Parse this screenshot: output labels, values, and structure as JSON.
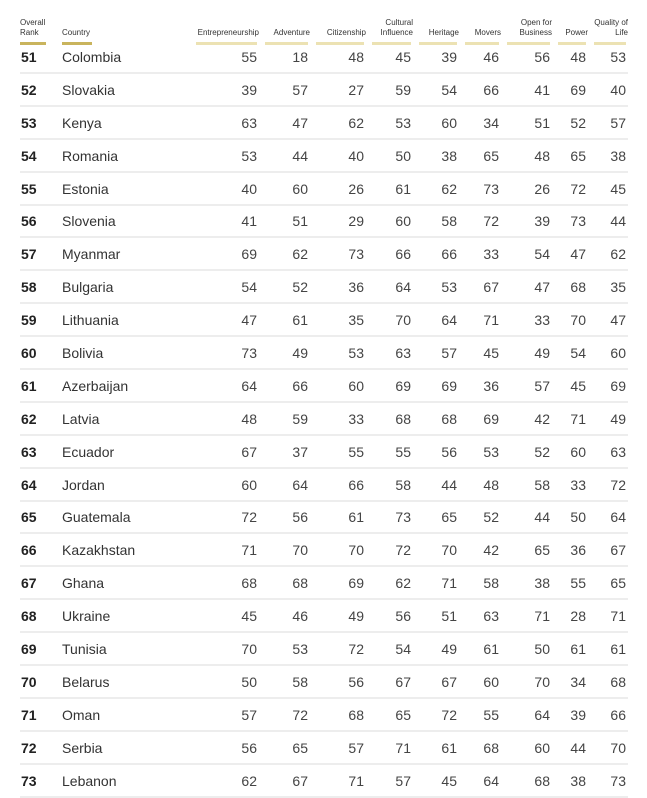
{
  "chart_data": {
    "type": "table",
    "columns": [
      "Overall Rank",
      "Country",
      "Entrepreneurship",
      "Adventure",
      "Citizenship",
      "Cultural Influence",
      "Heritage",
      "Movers",
      "Open for Business",
      "Power",
      "Quality of Life"
    ],
    "rows": [
      [
        "51",
        "Colombia",
        "55",
        "18",
        "48",
        "45",
        "39",
        "46",
        "56",
        "48",
        "53"
      ],
      [
        "52",
        "Slovakia",
        "39",
        "57",
        "27",
        "59",
        "54",
        "66",
        "41",
        "69",
        "40"
      ],
      [
        "53",
        "Kenya",
        "63",
        "47",
        "62",
        "53",
        "60",
        "34",
        "51",
        "52",
        "57"
      ],
      [
        "54",
        "Romania",
        "53",
        "44",
        "40",
        "50",
        "38",
        "65",
        "48",
        "65",
        "38"
      ],
      [
        "55",
        "Estonia",
        "40",
        "60",
        "26",
        "61",
        "62",
        "73",
        "26",
        "72",
        "45"
      ],
      [
        "56",
        "Slovenia",
        "41",
        "51",
        "29",
        "60",
        "58",
        "72",
        "39",
        "73",
        "44"
      ],
      [
        "57",
        "Myanmar",
        "69",
        "62",
        "73",
        "66",
        "66",
        "33",
        "54",
        "47",
        "62"
      ],
      [
        "58",
        "Bulgaria",
        "54",
        "52",
        "36",
        "64",
        "53",
        "67",
        "47",
        "68",
        "35"
      ],
      [
        "59",
        "Lithuania",
        "47",
        "61",
        "35",
        "70",
        "64",
        "71",
        "33",
        "70",
        "47"
      ],
      [
        "60",
        "Bolivia",
        "73",
        "49",
        "53",
        "63",
        "57",
        "45",
        "49",
        "54",
        "60"
      ],
      [
        "61",
        "Azerbaijan",
        "64",
        "66",
        "60",
        "69",
        "69",
        "36",
        "57",
        "45",
        "69"
      ],
      [
        "62",
        "Latvia",
        "48",
        "59",
        "33",
        "68",
        "68",
        "69",
        "42",
        "71",
        "49"
      ],
      [
        "63",
        "Ecuador",
        "67",
        "37",
        "55",
        "55",
        "56",
        "53",
        "52",
        "60",
        "63"
      ],
      [
        "64",
        "Jordan",
        "60",
        "64",
        "66",
        "58",
        "44",
        "48",
        "58",
        "33",
        "72"
      ],
      [
        "65",
        "Guatemala",
        "72",
        "56",
        "61",
        "73",
        "65",
        "52",
        "44",
        "50",
        "64"
      ],
      [
        "66",
        "Kazakhstan",
        "71",
        "70",
        "70",
        "72",
        "70",
        "42",
        "65",
        "36",
        "67"
      ],
      [
        "67",
        "Ghana",
        "68",
        "68",
        "69",
        "62",
        "71",
        "58",
        "38",
        "55",
        "65"
      ],
      [
        "68",
        "Ukraine",
        "45",
        "46",
        "49",
        "56",
        "51",
        "63",
        "71",
        "28",
        "71"
      ],
      [
        "69",
        "Tunisia",
        "70",
        "53",
        "72",
        "54",
        "49",
        "61",
        "50",
        "61",
        "61"
      ],
      [
        "70",
        "Belarus",
        "50",
        "58",
        "56",
        "67",
        "67",
        "60",
        "70",
        "34",
        "68"
      ],
      [
        "71",
        "Oman",
        "57",
        "72",
        "68",
        "65",
        "72",
        "55",
        "64",
        "39",
        "66"
      ],
      [
        "72",
        "Serbia",
        "56",
        "65",
        "57",
        "71",
        "61",
        "68",
        "60",
        "44",
        "70"
      ],
      [
        "73",
        "Lebanon",
        "62",
        "67",
        "71",
        "57",
        "45",
        "64",
        "68",
        "38",
        "73"
      ]
    ],
    "colors": {
      "header_underline_primary": "#c9b45d",
      "header_underline_secondary": "#ece2b3",
      "row_divider": "#ededed"
    }
  }
}
